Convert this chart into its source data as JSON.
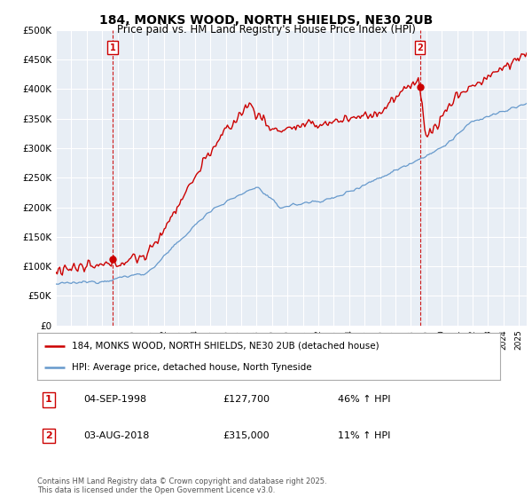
{
  "title": "184, MONKS WOOD, NORTH SHIELDS, NE30 2UB",
  "subtitle": "Price paid vs. HM Land Registry's House Price Index (HPI)",
  "legend_line1": "184, MONKS WOOD, NORTH SHIELDS, NE30 2UB (detached house)",
  "legend_line2": "HPI: Average price, detached house, North Tyneside",
  "annotation1_label": "1",
  "annotation1_date": "04-SEP-1998",
  "annotation1_price": "£127,700",
  "annotation1_hpi": "46% ↑ HPI",
  "annotation2_label": "2",
  "annotation2_date": "03-AUG-2018",
  "annotation2_price": "£315,000",
  "annotation2_hpi": "11% ↑ HPI",
  "footer": "Contains HM Land Registry data © Crown copyright and database right 2025.\nThis data is licensed under the Open Government Licence v3.0.",
  "ylim": [
    0,
    500000
  ],
  "yticks": [
    0,
    50000,
    100000,
    150000,
    200000,
    250000,
    300000,
    350000,
    400000,
    450000,
    500000
  ],
  "ytick_labels": [
    "£0",
    "£50K",
    "£100K",
    "£150K",
    "£200K",
    "£250K",
    "£300K",
    "£350K",
    "£400K",
    "£450K",
    "£500K"
  ],
  "red_color": "#cc0000",
  "blue_color": "#6699cc",
  "annot_line_color": "#cc0000",
  "background_color": "#ffffff",
  "plot_bg_color": "#e8eef5",
  "grid_color": "#ffffff",
  "purchase1_x": 1998.67,
  "purchase1_y": 127700,
  "purchase2_x": 2018.58,
  "purchase2_y": 315000,
  "xmin": 1995,
  "xmax": 2025.5
}
